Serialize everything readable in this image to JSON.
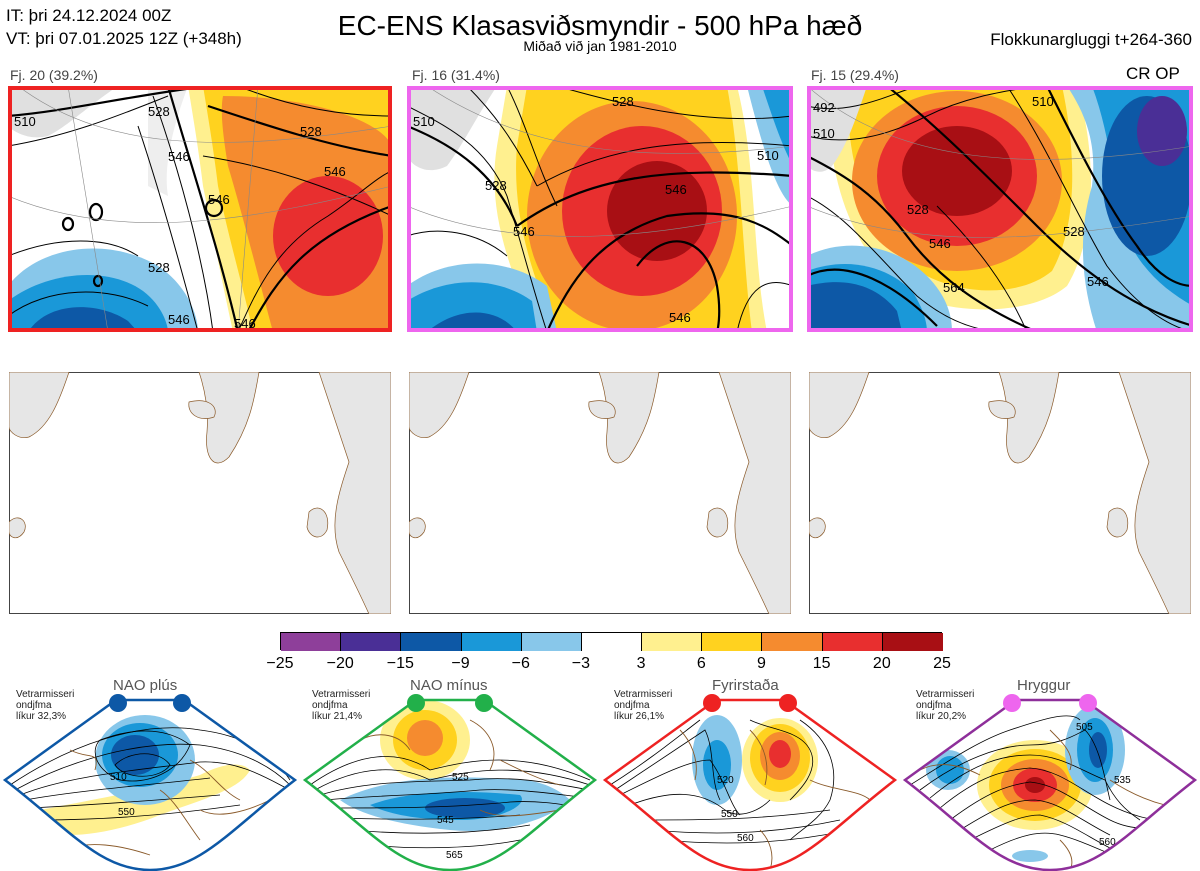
{
  "header": {
    "it_line": "IT: þri 24.12.2024 00Z",
    "vt_line": "VT: þri 07.01.2025 12Z  (+348h)",
    "title": "EC-ENS Klasasviðsmyndir - 500 hPa hæð",
    "subtitle": "Miðað við jan 1981-2010",
    "window": "Flokkunargluggi t+264-360"
  },
  "clusters": [
    {
      "label": "Fj. 20 (39.2%)",
      "frame_color": "#ee2222",
      "contours": [
        "510",
        "528",
        "546",
        "546",
        "546",
        "528",
        "546",
        "528",
        "546"
      ]
    },
    {
      "label": "Fj. 16 (31.4%)",
      "frame_color": "#ee66ee",
      "contours": [
        "510",
        "528",
        "546",
        "528",
        "546",
        "510",
        "546"
      ]
    },
    {
      "label": "Fj. 15 (29.4%)",
      "frame_color": "#ee66ee",
      "contours": [
        "492",
        "510",
        "510",
        "528",
        "546",
        "528",
        "546",
        "564"
      ],
      "tag": "CR OP"
    }
  ],
  "colorbar": {
    "colors": [
      "#8e3f9a",
      "#4a2f96",
      "#0d58a6",
      "#1a98d8",
      "#88c7ea",
      "#ffffff",
      "#fff08f",
      "#ffd21f",
      "#f58b2f",
      "#e82f2f",
      "#a80f14"
    ],
    "ticks": [
      "−25",
      "−20",
      "−15",
      "−9",
      "−6",
      "−3",
      "3",
      "6",
      "9",
      "15",
      "20",
      "25"
    ]
  },
  "regimes": [
    {
      "name": "NAO plús",
      "note": [
        "Vetrarmisseri",
        "ondjfma",
        "líkur 32,3%"
      ],
      "dot_color": "#0d58a6",
      "frame_color": "#0d58a6",
      "contours": [
        "510",
        "550"
      ]
    },
    {
      "name": "NAO mínus",
      "note": [
        "Vetrarmisseri",
        "ondjfma",
        "líkur 21,4%"
      ],
      "dot_color": "#22b04a",
      "frame_color": "#22b04a",
      "contours": [
        "525",
        "545",
        "565"
      ]
    },
    {
      "name": "Fyrirstaða",
      "note": [
        "Vetrarmisseri",
        "ondjfma",
        "líkur 26,1%"
      ],
      "dot_color": "#ee2222",
      "frame_color": "#ee2222",
      "contours": [
        "520",
        "550",
        "560"
      ]
    },
    {
      "name": "Hryggur",
      "note": [
        "Vetrarmisseri",
        "ondjfma",
        "líkur 20,2%"
      ],
      "dot_color": "#ee66ee",
      "frame_color": "#8e2f9a",
      "contours": [
        "505",
        "535",
        "560"
      ]
    }
  ]
}
